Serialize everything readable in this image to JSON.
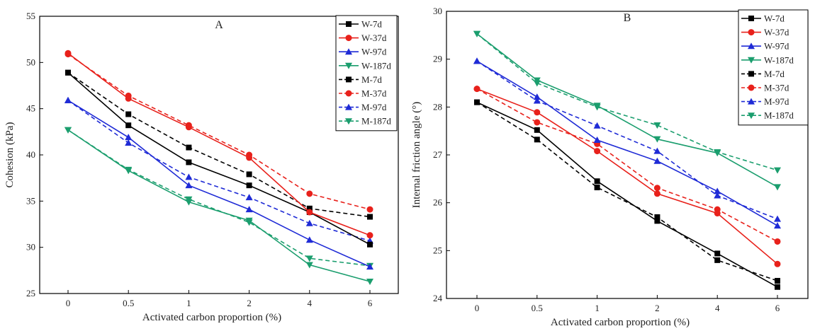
{
  "chart_data": [
    {
      "type": "line",
      "title": "A",
      "xlabel": "Activated carbon proportion (%)",
      "ylabel": "Cohesion (kPa)",
      "categories": [
        "0",
        "0.5",
        "1",
        "2",
        "4",
        "6"
      ],
      "ylim": [
        25,
        55
      ],
      "yticks": [
        25,
        30,
        35,
        40,
        45,
        50,
        55
      ],
      "grid": false,
      "legend_position": "top-right",
      "series": [
        {
          "name": "W-7d",
          "values": [
            48.9,
            43.2,
            39.2,
            36.7,
            33.8,
            30.3
          ],
          "color": "#000000",
          "marker": "square",
          "dash": false
        },
        {
          "name": "W-37d",
          "values": [
            51.0,
            46.1,
            43.0,
            39.7,
            33.8,
            31.3
          ],
          "color": "#e8211b",
          "marker": "circle",
          "dash": false
        },
        {
          "name": "W-97d",
          "values": [
            45.9,
            41.9,
            36.7,
            34.1,
            30.8,
            27.9
          ],
          "color": "#1f2bd6",
          "marker": "triangle-up",
          "dash": false
        },
        {
          "name": "W-187d",
          "values": [
            42.7,
            38.3,
            34.9,
            32.9,
            28.1,
            26.3
          ],
          "color": "#1b9e6e",
          "marker": "triangle-down",
          "dash": false
        },
        {
          "name": "M-7d",
          "values": [
            48.9,
            44.4,
            40.8,
            37.9,
            34.2,
            33.3
          ],
          "color": "#000000",
          "marker": "square",
          "dash": true
        },
        {
          "name": "M-37d",
          "values": [
            50.9,
            46.4,
            43.2,
            40.0,
            35.8,
            34.1
          ],
          "color": "#e8211b",
          "marker": "circle",
          "dash": true
        },
        {
          "name": "M-97d",
          "values": [
            45.9,
            41.3,
            37.6,
            35.4,
            32.6,
            30.7
          ],
          "color": "#1f2bd6",
          "marker": "triangle-up",
          "dash": true
        },
        {
          "name": "M-187d",
          "values": [
            42.7,
            38.4,
            35.2,
            32.7,
            28.8,
            28.0
          ],
          "color": "#1b9e6e",
          "marker": "triangle-down",
          "dash": true
        }
      ]
    },
    {
      "type": "line",
      "title": "B",
      "xlabel": "Activated carbon proportion (%)",
      "ylabel": "Internal friction angle (°)",
      "categories": [
        "0",
        "0.5",
        "1",
        "2",
        "4",
        "6"
      ],
      "ylim": [
        24,
        30
      ],
      "yticks": [
        24,
        25,
        26,
        27,
        28,
        29,
        30
      ],
      "grid": false,
      "legend_position": "top-right",
      "series": [
        {
          "name": "W-7d",
          "values": [
            28.1,
            27.52,
            26.45,
            25.62,
            24.94,
            24.24
          ],
          "color": "#000000",
          "marker": "square",
          "dash": false
        },
        {
          "name": "W-37d",
          "values": [
            28.38,
            27.89,
            27.08,
            26.19,
            25.78,
            24.72
          ],
          "color": "#e8211b",
          "marker": "circle",
          "dash": false
        },
        {
          "name": "W-97d",
          "values": [
            28.96,
            28.21,
            27.31,
            26.87,
            26.24,
            25.52
          ],
          "color": "#1f2bd6",
          "marker": "triangle-up",
          "dash": false
        },
        {
          "name": "W-187d",
          "values": [
            29.53,
            28.56,
            28.03,
            27.33,
            27.04,
            26.33
          ],
          "color": "#1b9e6e",
          "marker": "triangle-down",
          "dash": false
        },
        {
          "name": "M-7d",
          "values": [
            28.1,
            27.32,
            26.32,
            25.7,
            24.8,
            24.37
          ],
          "color": "#000000",
          "marker": "square",
          "dash": true
        },
        {
          "name": "M-37d",
          "values": [
            28.38,
            27.68,
            27.23,
            26.31,
            25.86,
            25.19
          ],
          "color": "#e8211b",
          "marker": "circle",
          "dash": true
        },
        {
          "name": "M-97d",
          "values": [
            28.96,
            28.13,
            27.61,
            27.08,
            26.15,
            25.66
          ],
          "color": "#1f2bd6",
          "marker": "triangle-up",
          "dash": true
        },
        {
          "name": "M-187d",
          "values": [
            29.53,
            28.5,
            28.0,
            27.62,
            27.06,
            26.68
          ],
          "color": "#1b9e6e",
          "marker": "triangle-down",
          "dash": true
        }
      ]
    }
  ]
}
